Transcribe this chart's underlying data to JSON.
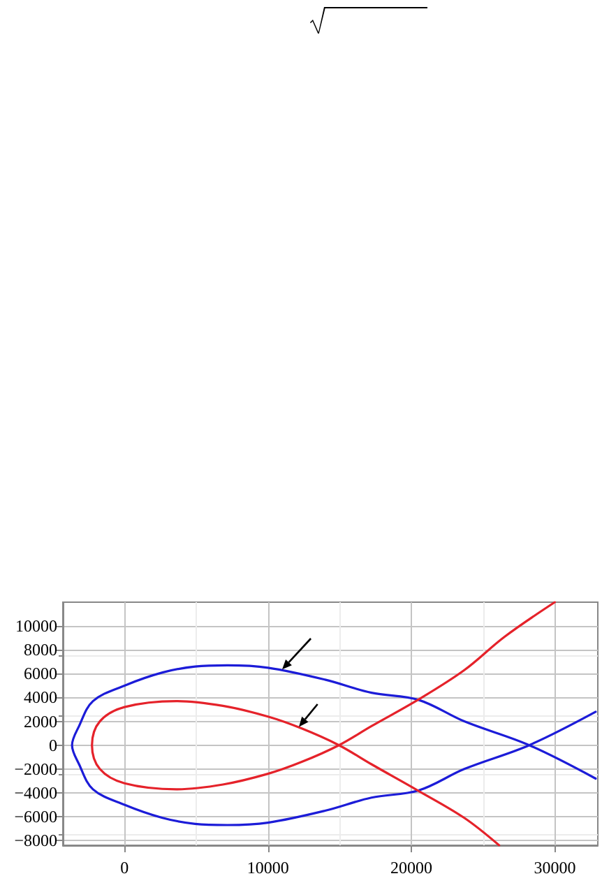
{
  "chart_data": {
    "type": "line",
    "xlim": [
      -4300,
      33000
    ],
    "xticks": [
      0,
      10000,
      20000,
      30000
    ],
    "ylim": [
      -8400,
      12000
    ],
    "yticks": [
      -8000,
      -6000,
      -4000,
      -2000,
      0,
      2000,
      4000,
      6000,
      8000,
      10000
    ],
    "grid": true,
    "marker": "none",
    "line_style": "solid",
    "series": [
      {
        "color": "#1c1cd8",
        "x": [
          32850,
          28220,
          23690,
          20500,
          17220,
          13980,
          10000,
          7180,
          4920,
          2650,
          0,
          -2200,
          -3170,
          -3660,
          -3170,
          -2200,
          0,
          2650,
          4920,
          7180,
          10000,
          13980,
          17220,
          20500,
          23690,
          28220,
          32850
        ],
        "values": [
          2800,
          0,
          -2000,
          -3800,
          -4400,
          -5500,
          -6500,
          -6700,
          -6600,
          -6100,
          -5000,
          -3700,
          -1600,
          0,
          1600,
          3700,
          5000,
          6100,
          6600,
          6700,
          6500,
          5500,
          4400,
          3800,
          2000,
          0,
          -2800
        ]
      },
      {
        "color": "#e5222a",
        "x": [
          30000,
          26500,
          23690,
          20450,
          17220,
          14950,
          12360,
          10000,
          6860,
          3620,
          0,
          -1720,
          -2270,
          -1720,
          0,
          3620,
          6860,
          10000,
          12360,
          14950,
          17220,
          20450,
          23690,
          26120
        ],
        "values": [
          12000,
          9100,
          6300,
          3800,
          1600,
          0,
          -1400,
          -2400,
          -3300,
          -3700,
          -3200,
          -2000,
          0,
          2000,
          3200,
          3700,
          3300,
          2400,
          1400,
          0,
          -1600,
          -3800,
          -6100,
          -8400
        ]
      }
    ]
  }
}
